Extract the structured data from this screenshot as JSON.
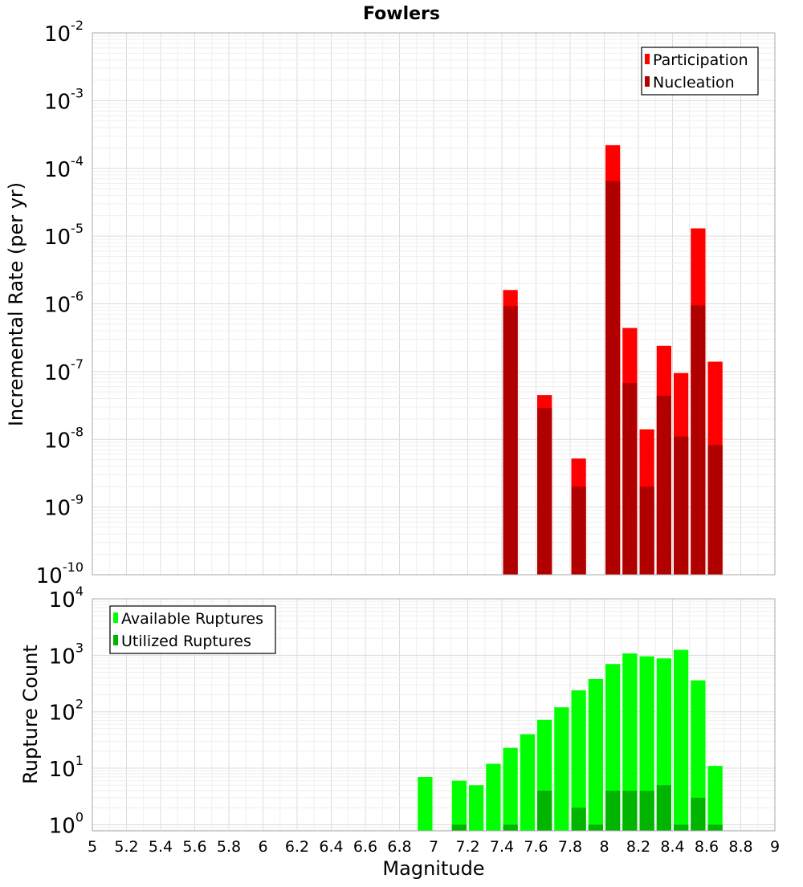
{
  "chart_data": [
    {
      "type": "bar",
      "title": "Fowlers",
      "ylabel": "Incremental Rate (per yr)",
      "xlabel": "",
      "yscale": "log",
      "ylim": [
        1e-10,
        0.01
      ],
      "xlim": [
        5,
        9
      ],
      "yticks": [
        {
          "base": "10",
          "exp": "-10",
          "value": 1e-10
        },
        {
          "base": "10",
          "exp": "-9",
          "value": 1e-09
        },
        {
          "base": "10",
          "exp": "-8",
          "value": 1e-08
        },
        {
          "base": "10",
          "exp": "-7",
          "value": 1e-07
        },
        {
          "base": "10",
          "exp": "-6",
          "value": 1e-06
        },
        {
          "base": "10",
          "exp": "-5",
          "value": 1e-05
        },
        {
          "base": "10",
          "exp": "-4",
          "value": 0.0001
        },
        {
          "base": "10",
          "exp": "-3",
          "value": 0.001
        },
        {
          "base": "10",
          "exp": "-2",
          "value": 0.01
        }
      ],
      "x": [
        7.45,
        7.65,
        7.85,
        8.05,
        8.15,
        8.25,
        8.35,
        8.45,
        8.55,
        8.65
      ],
      "series": [
        {
          "name": "Participation",
          "color": "#ff0000",
          "values": [
            1.6e-06,
            4.5e-08,
            5.2e-09,
            0.00022,
            4.4e-07,
            1.4e-08,
            2.4e-07,
            9.5e-08,
            1.3e-05,
            1.4e-07
          ]
        },
        {
          "name": "Nucleation",
          "color": "#b00000",
          "values": [
            9.3e-07,
            2.9e-08,
            2e-09,
            6.5e-05,
            6.8e-08,
            2e-09,
            4.4e-08,
            1.1e-08,
            9.5e-07,
            8.2e-09
          ]
        }
      ],
      "legend": "top-right",
      "grid": true
    },
    {
      "type": "bar",
      "title": "",
      "ylabel": "Rupture Count",
      "xlabel": "Magnitude",
      "yscale": "log",
      "ylim": [
        0.78,
        10000
      ],
      "xlim": [
        5,
        9
      ],
      "yticks": [
        {
          "base": "10",
          "exp": "0",
          "value": 1
        },
        {
          "base": "10",
          "exp": "1",
          "value": 10
        },
        {
          "base": "10",
          "exp": "2",
          "value": 100
        },
        {
          "base": "10",
          "exp": "3",
          "value": 1000
        },
        {
          "base": "10",
          "exp": "4",
          "value": 10000
        }
      ],
      "xticks": [
        "5",
        "5.2",
        "5.4",
        "5.6",
        "5.8",
        "6",
        "6.2",
        "6.4",
        "6.6",
        "6.8",
        "7",
        "7.2",
        "7.4",
        "7.6",
        "7.8",
        "8",
        "8.2",
        "8.4",
        "8.6",
        "8.8",
        "9"
      ],
      "x": [
        6.95,
        7.15,
        7.25,
        7.35,
        7.45,
        7.55,
        7.65,
        7.75,
        7.85,
        7.95,
        8.05,
        8.15,
        8.25,
        8.35,
        8.45,
        8.55,
        8.65
      ],
      "series": [
        {
          "name": "Available Ruptures",
          "color": "#00ff00",
          "values": [
            7,
            6,
            5,
            12,
            23,
            40,
            72,
            120,
            240,
            380,
            700,
            1080,
            960,
            880,
            1250,
            360,
            11
          ]
        },
        {
          "name": "Utilized Ruptures",
          "color": "#00b400",
          "values": [
            0,
            1,
            0,
            0,
            1,
            0,
            4,
            0,
            2,
            1,
            4,
            4,
            4,
            5,
            1,
            3,
            1
          ]
        }
      ],
      "legend": "top-left",
      "grid": true
    }
  ]
}
